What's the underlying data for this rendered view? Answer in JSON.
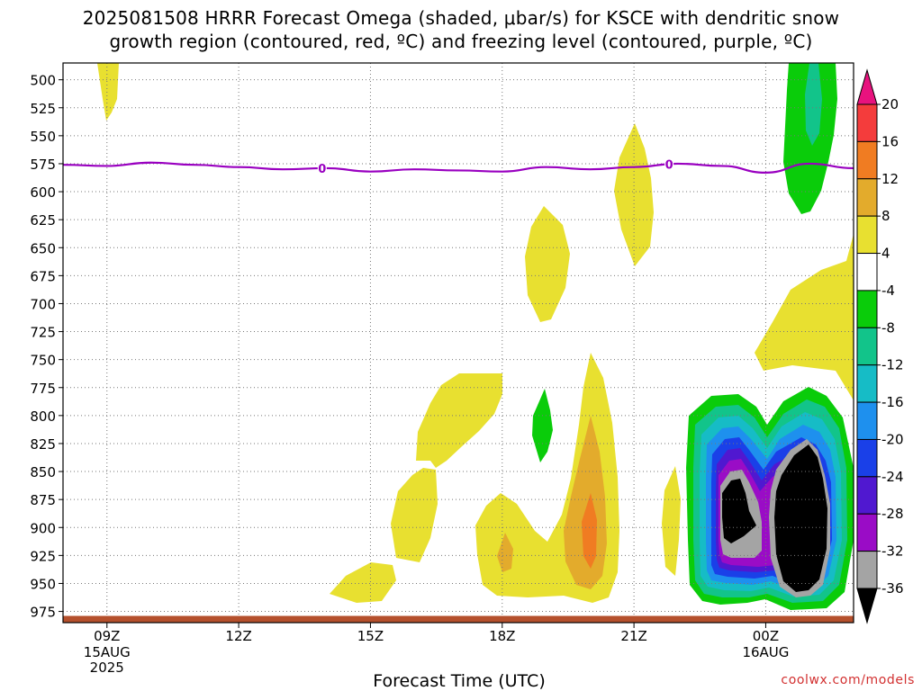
{
  "header": {
    "title_line1": "2025081508 HRRR Forecast Omega (shaded, μbar/s) for KSCE with dendritic snow",
    "title_line2": "growth region (contoured, red, ºC) and freezing level (contoured, purple, ºC)"
  },
  "footer": {
    "xaxis_title": "Forecast Time (UTC)",
    "credit": "coolwx.com/models"
  },
  "chart_data": {
    "type": "heatmap",
    "title": "2025081508 HRRR Forecast Omega (shaded, μbar/s) for KSCE with dendritic snow growth region (contoured, red, ºC) and freezing level (contoured, purple, ºC)",
    "xlabel": "Forecast Time (UTC)",
    "x_range_hours": [
      -1,
      17
    ],
    "x_ticks": [
      {
        "hour": 0,
        "label": "09Z",
        "sub": [
          "15AUG",
          "2025"
        ]
      },
      {
        "hour": 3,
        "label": "12Z",
        "sub": []
      },
      {
        "hour": 6,
        "label": "15Z",
        "sub": []
      },
      {
        "hour": 9,
        "label": "18Z",
        "sub": []
      },
      {
        "hour": 12,
        "label": "21Z",
        "sub": []
      },
      {
        "hour": 15,
        "label": "00Z",
        "sub": [
          "16AUG"
        ]
      }
    ],
    "y_range_mb": [
      485,
      985
    ],
    "y_ticks": [
      500,
      525,
      550,
      575,
      600,
      625,
      650,
      675,
      700,
      725,
      750,
      775,
      800,
      825,
      850,
      875,
      900,
      925,
      950,
      975
    ],
    "grid": "dotted",
    "colorbar": {
      "labels": [
        20,
        16,
        12,
        8,
        4,
        -4,
        -8,
        -12,
        -16,
        -20,
        -24,
        -28,
        -32,
        -36
      ],
      "colors": [
        "#e8127e",
        "#f43c3c",
        "#f07c22",
        "#e3ab2c",
        "#e8e030",
        "#ffffff",
        "#0acc0a",
        "#12c48a",
        "#16bcc6",
        "#1e90ee",
        "#1a40e8",
        "#5018d0",
        "#9a0cc6",
        "#a4a4a4",
        "#000000"
      ]
    },
    "freezing_level": {
      "color": "#9900c0",
      "label": "0",
      "label_hours": [
        4.9,
        12.8
      ],
      "points": [
        [
          -1,
          576
        ],
        [
          0,
          577
        ],
        [
          1,
          574
        ],
        [
          2,
          576
        ],
        [
          3,
          578
        ],
        [
          4,
          580
        ],
        [
          5,
          579
        ],
        [
          6,
          582
        ],
        [
          7,
          580
        ],
        [
          8,
          581
        ],
        [
          9,
          582
        ],
        [
          10,
          578
        ],
        [
          11,
          580
        ],
        [
          12,
          578
        ],
        [
          13,
          575
        ],
        [
          14,
          577
        ],
        [
          15,
          583
        ],
        [
          16,
          575
        ],
        [
          17,
          579
        ]
      ]
    },
    "ground": {
      "color": "#b5502c",
      "top_mb": 979
    }
  }
}
